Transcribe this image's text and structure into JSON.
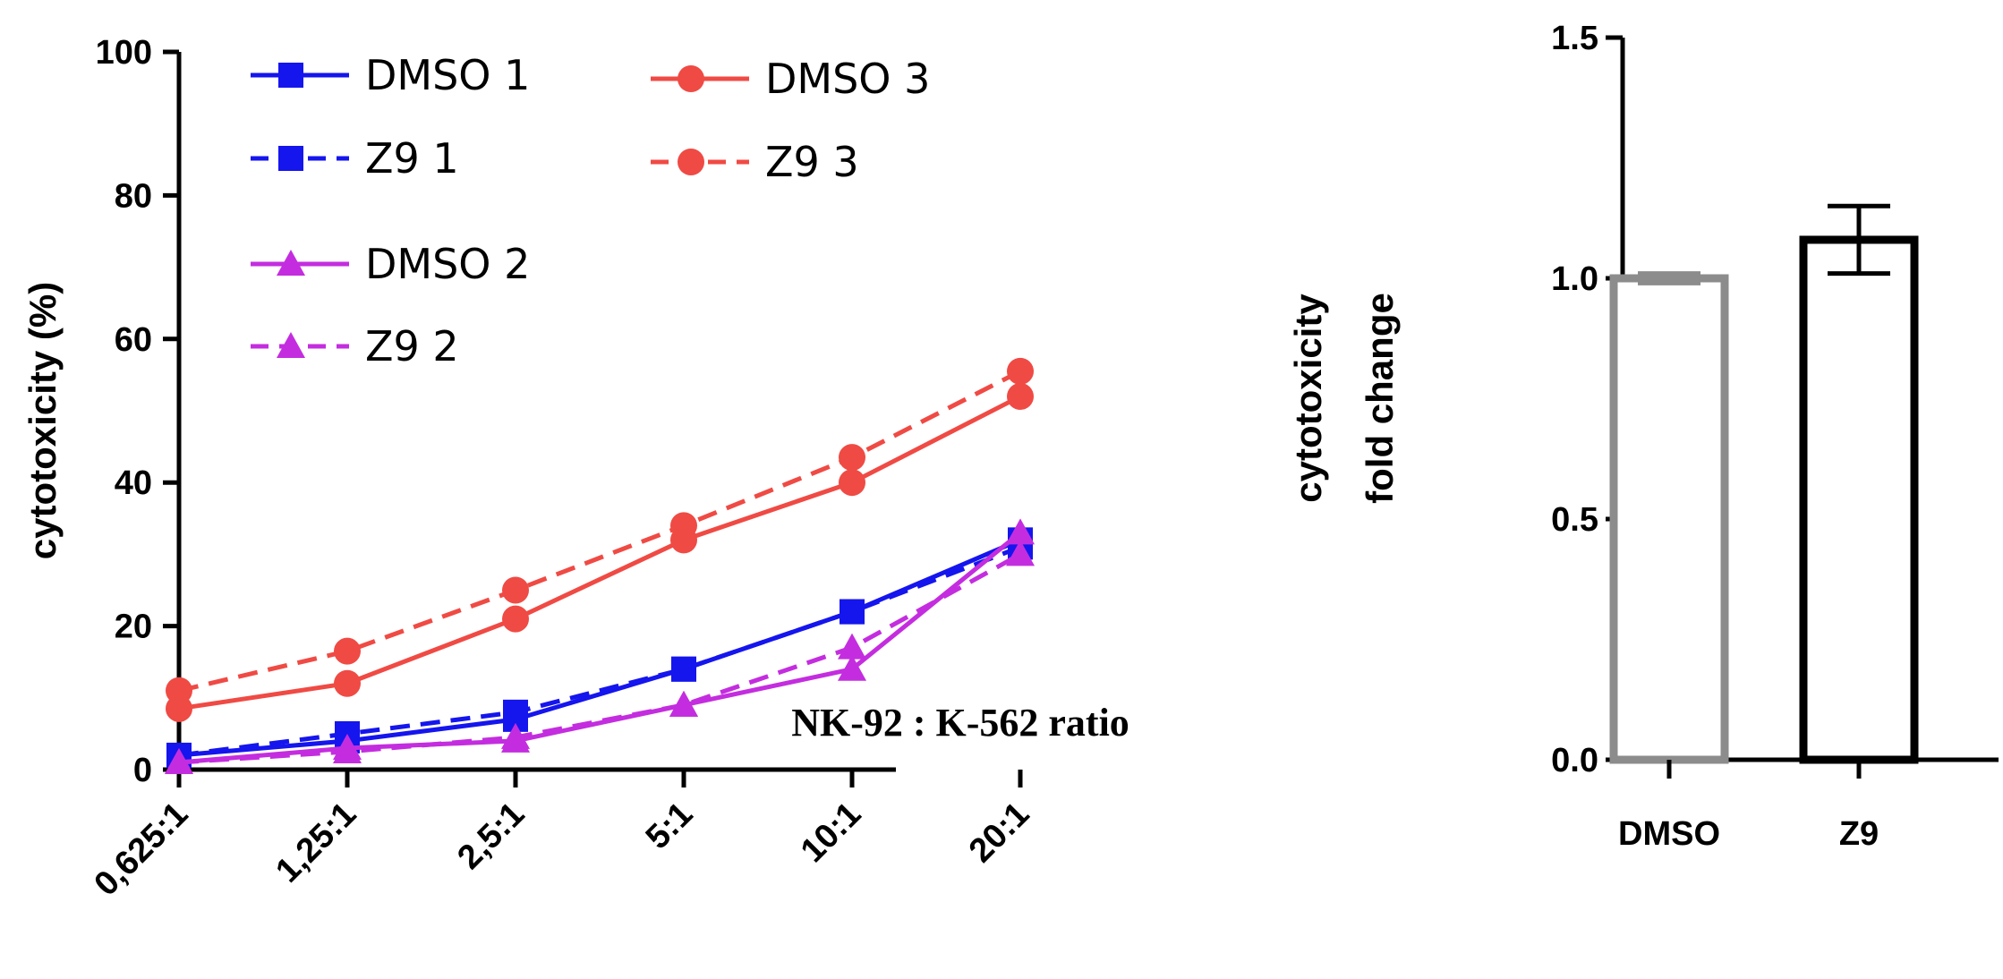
{
  "chart_data": [
    {
      "type": "line",
      "title": "",
      "xlabel": "",
      "ylabel": "cytotoxicity (%)",
      "ylim": [
        0,
        100
      ],
      "yticks": [
        "0",
        "20",
        "40",
        "60",
        "80",
        "100"
      ],
      "categories": [
        "0,625:1",
        "1,25:1",
        "2,5:1",
        "5:1",
        "10:1",
        "20:1"
      ],
      "annotation": "NK-92 : K-562 ratio",
      "legend_placement": "top",
      "series": [
        {
          "name": "DMSO 1",
          "color": "#1515ee",
          "marker": "square",
          "dash": "solid",
          "values": [
            2,
            4,
            7,
            14,
            22,
            32
          ]
        },
        {
          "name": "Z9 1",
          "color": "#1515ee",
          "marker": "square",
          "dash": "dashed",
          "values": [
            2,
            5,
            8,
            14,
            22,
            31
          ]
        },
        {
          "name": "DMSO 2",
          "color": "#c42ddf",
          "marker": "triangle",
          "dash": "solid",
          "values": [
            1,
            3,
            4,
            9,
            14,
            33
          ]
        },
        {
          "name": "Z9 2",
          "color": "#c42ddf",
          "marker": "triangle",
          "dash": "dashed",
          "values": [
            1,
            2.5,
            4.5,
            9,
            17,
            30
          ]
        },
        {
          "name": "DMSO 3",
          "color": "#f04a44",
          "marker": "circle",
          "dash": "solid",
          "values": [
            8.5,
            12,
            21,
            32,
            40,
            52
          ]
        },
        {
          "name": "Z9 3",
          "color": "#f04a44",
          "marker": "circle",
          "dash": "dashed",
          "values": [
            11,
            16.5,
            25,
            34,
            43.5,
            55.5
          ]
        }
      ]
    },
    {
      "type": "bar",
      "title": "",
      "xlabel": "",
      "ylabel_line1": "cytotoxicity",
      "ylabel_line2": "fold change",
      "ylim": [
        0,
        1.5
      ],
      "yticks": [
        "0.0",
        "0.5",
        "1.0",
        "1.5"
      ],
      "categories": [
        "DMSO",
        "Z9"
      ],
      "values": [
        1.0,
        1.08
      ],
      "errors": [
        0.01,
        0.07
      ],
      "bar_colors": [
        "#8c8c8c",
        "#000000"
      ]
    }
  ]
}
